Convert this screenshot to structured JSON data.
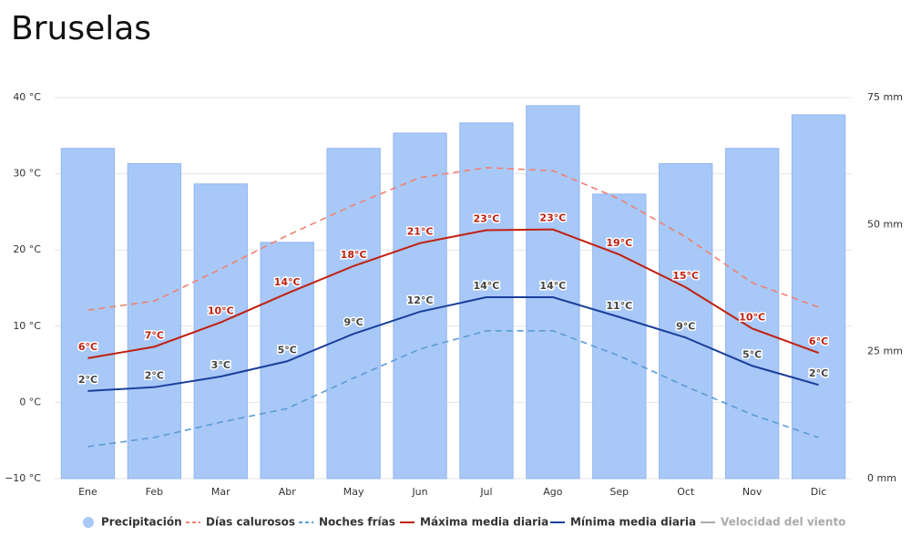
{
  "chart_data": {
    "type": "bar",
    "title": "Bruselas",
    "categories": [
      "Ene",
      "Feb",
      "Mar",
      "Abr",
      "May",
      "Jun",
      "Jul",
      "Ago",
      "Sep",
      "Oct",
      "Nov",
      "Dic"
    ],
    "ylim": [
      -10,
      40
    ],
    "yticks": [
      {
        "value": -10,
        "label": "−10 °C"
      },
      {
        "value": 0,
        "label": "0 °C"
      },
      {
        "value": 10,
        "label": "10 °C"
      },
      {
        "value": 20,
        "label": "20 °C"
      },
      {
        "value": 30,
        "label": "30 °C"
      },
      {
        "value": 40,
        "label": "40 °C"
      }
    ],
    "y2lim": [
      0,
      75
    ],
    "y2ticks": [
      {
        "value": 0,
        "label": "0 mm"
      },
      {
        "value": 25,
        "label": "25 mm"
      },
      {
        "value": 50,
        "label": "50 mm"
      },
      {
        "value": 75,
        "label": "75 mm"
      }
    ],
    "grid": true,
    "legend": "bottom",
    "series": [
      {
        "name": "Precipitación",
        "type": "bar",
        "axis": "y2",
        "color": "#a8c8f8",
        "values": [
          65,
          62,
          58,
          46.5,
          65,
          68,
          70,
          73.4,
          56,
          62,
          65,
          71.6
        ]
      },
      {
        "name": "Días calurosos",
        "type": "line",
        "dashed": true,
        "color": "#f08070",
        "values": [
          12.1,
          13.3,
          17.5,
          21.9,
          25.9,
          29.5,
          30.8,
          30.4,
          26.7,
          21.7,
          15.7,
          12.5
        ]
      },
      {
        "name": "Noches frías",
        "type": "line",
        "dashed": true,
        "color": "#5b9bd5",
        "values": [
          -5.8,
          -4.6,
          -2.6,
          -0.8,
          3.2,
          7.0,
          9.4,
          9.4,
          6.1,
          2.1,
          -1.6,
          -4.6
        ]
      },
      {
        "name": "Máxima media diaria",
        "type": "line",
        "color": "#c0200f",
        "values": [
          5.8,
          7.3,
          10.5,
          14.3,
          17.9,
          20.9,
          22.6,
          22.7,
          19.4,
          15.1,
          9.7,
          6.5
        ],
        "value_labels": [
          "6°C",
          "7°C",
          "10°C",
          "14°C",
          "18°C",
          "21°C",
          "23°C",
          "23°C",
          "19°C",
          "15°C",
          "10°C",
          "6°C"
        ]
      },
      {
        "name": "Mínima media diaria",
        "type": "line",
        "color": "#1a3f9a",
        "values": [
          1.5,
          2.0,
          3.4,
          5.4,
          9.0,
          11.9,
          13.8,
          13.8,
          11.2,
          8.5,
          4.8,
          2.3
        ],
        "value_labels": [
          "2°C",
          "2°C",
          "3°C",
          "5°C",
          "9°C",
          "12°C",
          "14°C",
          "14°C",
          "11°C",
          "9°C",
          "5°C",
          "2°C"
        ]
      },
      {
        "name": "Velocidad del viento",
        "type": "line",
        "hidden": true,
        "color": "#aaaaaa",
        "values": [
          null,
          null,
          null,
          null,
          null,
          null,
          null,
          null,
          null,
          null,
          null,
          null
        ]
      }
    ]
  }
}
